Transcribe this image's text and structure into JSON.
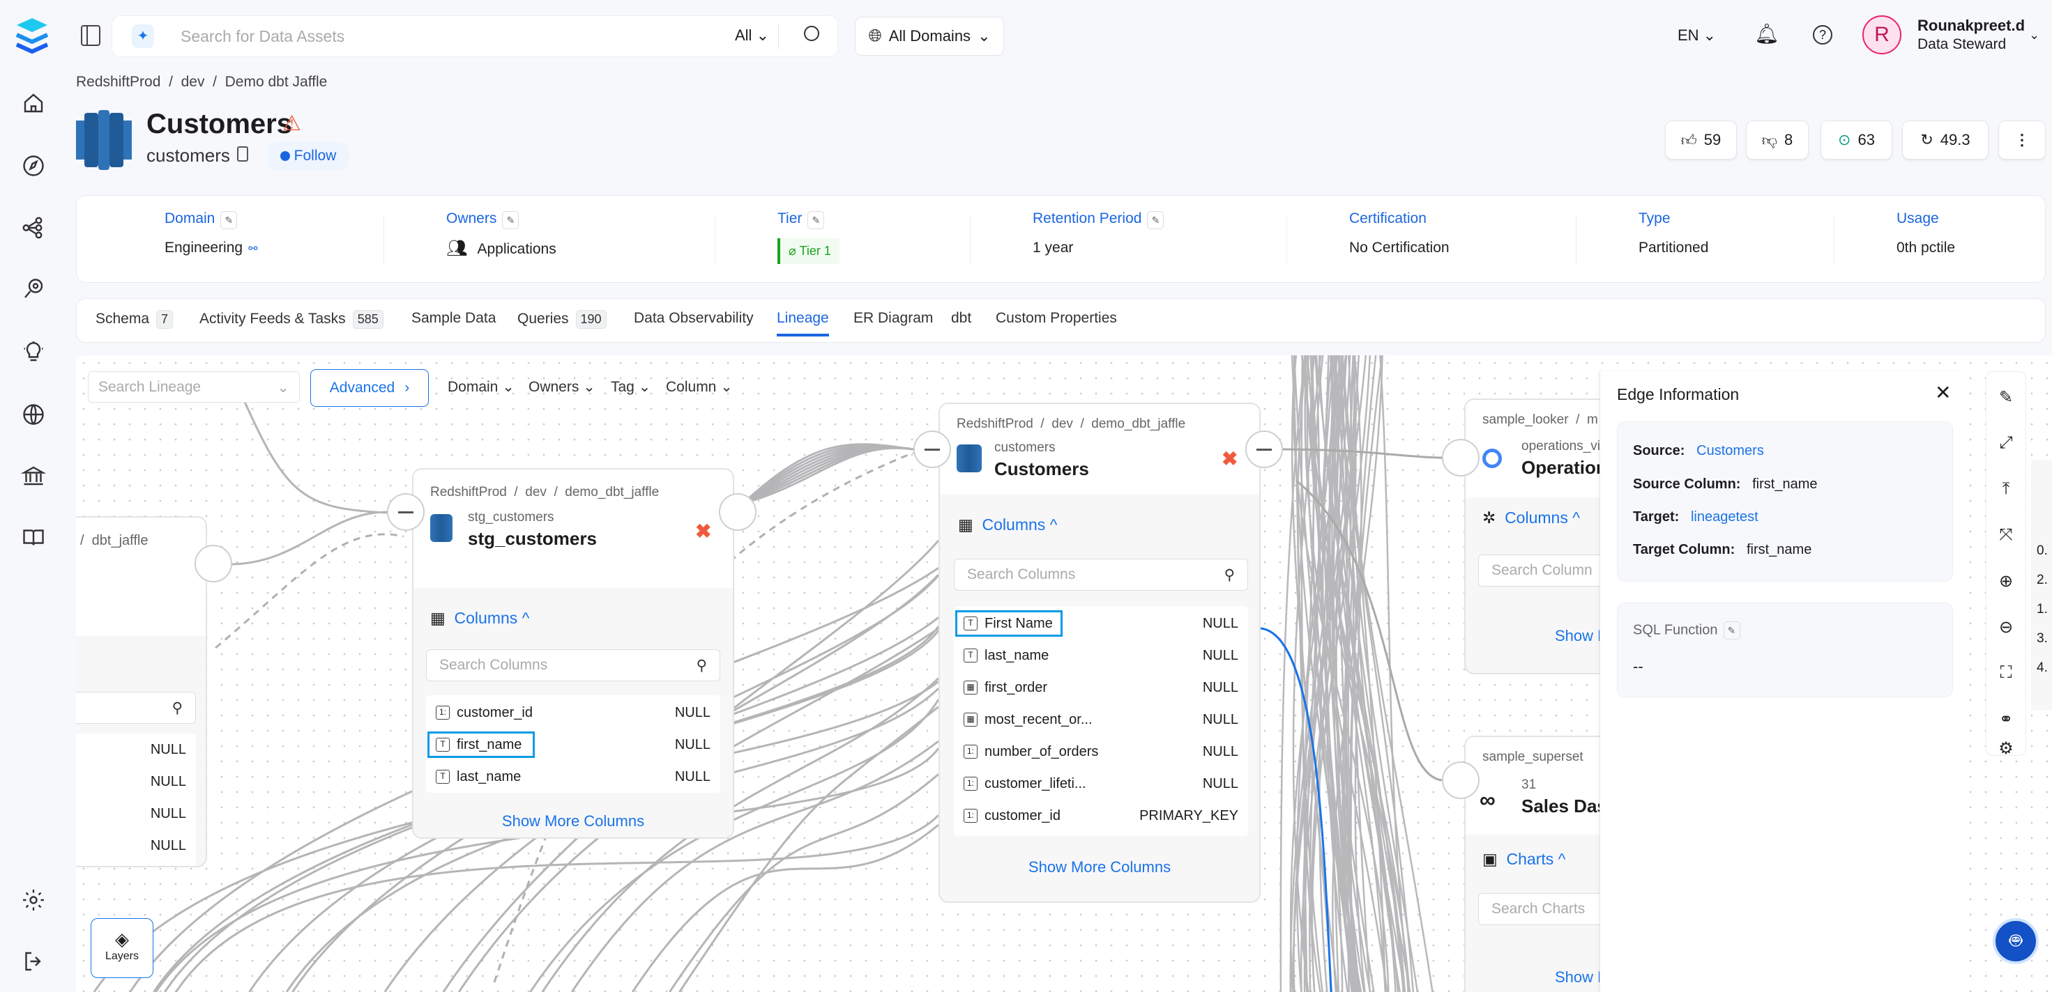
{
  "topbar": {
    "search_placeholder": "Search for Data Assets",
    "search_scope": "All",
    "domain_select": "All Domains",
    "language": "EN",
    "user_initial": "R",
    "user_name": "Rounakpreet.d",
    "user_role": "Data Steward"
  },
  "breadcrumb": [
    "RedshiftProd",
    "dev",
    "Demo dbt Jaffle"
  ],
  "entity": {
    "title": "Customers",
    "fqn_name": "customers",
    "follow_label": "Follow"
  },
  "stats": {
    "upvotes": "59",
    "downvotes": "8",
    "followers": "63",
    "version": "49.3"
  },
  "info": [
    {
      "label": "Domain",
      "value": "Engineering"
    },
    {
      "label": "Owners",
      "value": "Applications"
    },
    {
      "label": "Tier",
      "value": "Tier 1"
    },
    {
      "label": "Retention Period",
      "value": "1 year"
    },
    {
      "label": "Certification",
      "value": "No Certification"
    },
    {
      "label": "Type",
      "value": "Partitioned"
    },
    {
      "label": "Usage",
      "value": "0th pctile"
    }
  ],
  "tabs": [
    {
      "label": "Schema",
      "count": "7"
    },
    {
      "label": "Activity Feeds & Tasks",
      "count": "585"
    },
    {
      "label": "Sample Data"
    },
    {
      "label": "Queries",
      "count": "190"
    },
    {
      "label": "Data Observability"
    },
    {
      "label": "Lineage",
      "active": true
    },
    {
      "label": "ER Diagram"
    },
    {
      "label": "dbt"
    },
    {
      "label": "Custom Properties"
    }
  ],
  "lineage": {
    "search_placeholder": "Search Lineage",
    "advanced_label": "Advanced",
    "filters": [
      "Domain",
      "Owners",
      "Tag",
      "Column"
    ],
    "layers_label": "Layers",
    "left_node": {
      "path_tail": "dbt_jaffle",
      "values": [
        "NULL",
        "NULL",
        "NULL",
        "NULL"
      ]
    },
    "stg_node": {
      "path": [
        "RedshiftProd",
        "dev",
        "demo_dbt_jaffle"
      ],
      "name": "stg_customers",
      "display": "stg_customers",
      "columns_label": "Columns",
      "search_placeholder": "Search Columns",
      "columns": [
        {
          "name": "customer_id",
          "type": "NULL"
        },
        {
          "name": "first_name",
          "type": "NULL"
        },
        {
          "name": "last_name",
          "type": "NULL"
        }
      ],
      "show_more": "Show More Columns"
    },
    "main_node": {
      "path": [
        "RedshiftProd",
        "dev",
        "demo_dbt_jaffle"
      ],
      "name": "customers",
      "display": "Customers",
      "columns_label": "Columns",
      "search_placeholder": "Search Columns",
      "columns": [
        {
          "name": "First Name",
          "type": "NULL"
        },
        {
          "name": "last_name",
          "type": "NULL"
        },
        {
          "name": "first_order",
          "type": "NULL"
        },
        {
          "name": "most_recent_or...",
          "type": "NULL"
        },
        {
          "name": "number_of_orders",
          "type": "NULL"
        },
        {
          "name": "customer_lifeti...",
          "type": "NULL"
        },
        {
          "name": "customer_id",
          "type": "PRIMARY_KEY"
        }
      ],
      "show_more": "Show More Columns"
    },
    "looker_node": {
      "service": "sample_looker",
      "name": "operations_vi",
      "display": "Operation",
      "columns_label": "Columns",
      "search_placeholder": "Search Column",
      "show_more": "Show M"
    },
    "superset_node": {
      "service": "sample_superset",
      "name": "31",
      "display": "Sales Das",
      "charts_label": "Charts",
      "search_placeholder": "Search Charts",
      "show_more": "Show M"
    },
    "far_right_numbers": [
      "0.",
      "2.",
      "1.",
      "3.",
      "4."
    ]
  },
  "edge_panel": {
    "title": "Edge Information",
    "source_label": "Source:",
    "source": "Customers",
    "source_column_label": "Source Column:",
    "source_column": "first_name",
    "target_label": "Target:",
    "target": "lineagetest",
    "target_column_label": "Target Column:",
    "target_column": "first_name",
    "sql_label": "SQL Function",
    "sql_value": "--"
  },
  "colors": {
    "accent": "#1a73e8",
    "highlight": "#0a9be8",
    "tier_green": "#1aa31a",
    "alert": "#f05a3c"
  }
}
